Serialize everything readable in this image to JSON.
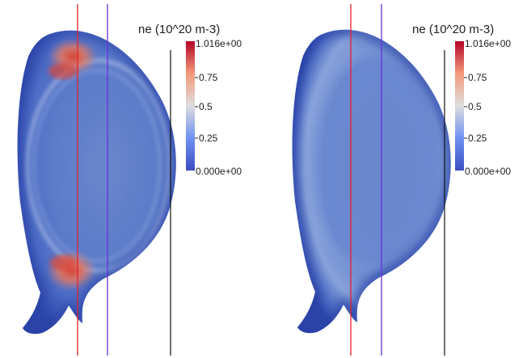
{
  "panels": [
    {
      "id": "left",
      "colorbar": {
        "title": "ne (10^20 m-3)",
        "max_label": "1.016e+00",
        "tick_075": "0.75",
        "tick_05": "0.5",
        "tick_025": "0.25",
        "min_label": "0.000e+00"
      },
      "features": [
        "hot-spots-top",
        "hot-spots-bottom",
        "ring"
      ]
    },
    {
      "id": "right",
      "colorbar": {
        "title": "ne (10^20 m-3)",
        "max_label": "1.016e+00",
        "tick_075": "0.75",
        "tick_05": "0.5",
        "tick_025": "0.25",
        "min_label": "0.000e+00"
      },
      "features": [
        "smooth-edge"
      ]
    }
  ],
  "colors": {
    "colormap_low": "#3b4cc0",
    "colormap_mid": "#dddddd",
    "colormap_high": "#b40426",
    "core": "#5878c8",
    "edge": "#2e47a8",
    "line_red": "#e8202a",
    "line_purple": "#6a30e0",
    "line_black": "#111111"
  }
}
